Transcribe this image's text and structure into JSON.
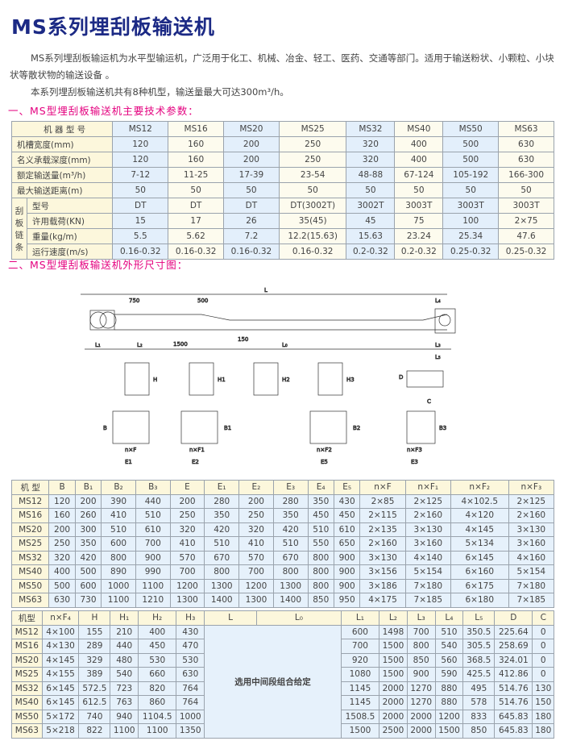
{
  "title": "MS系列埋刮板输送机",
  "intro": [
    "MS系列埋刮板输运机为水平型输运机，广泛用于化工、机械、冶金、轻工、医药、交通等部门。适用于输送粉状、小颗粒、小块状等散状物的输送设备 。",
    "本系列埋刮板输送机共有8种机型，输送量最大可达300m³/h。"
  ],
  "section1": "一、MS型埋刮板输送机主要技术参数：",
  "section2": "二、MS型埋刮板输送机外形尺寸图：",
  "colors": {
    "title": "#1c2a85",
    "section": "#e4007f",
    "header_bg": "#fcf7dc",
    "cell_bg": "#e6f1fb"
  },
  "spec_table": {
    "header": "机 器 型 号",
    "models": [
      "MS12",
      "MS16",
      "MS20",
      "MS25",
      "MS32",
      "MS40",
      "MS50",
      "MS63"
    ],
    "rows": [
      {
        "label": "机槽宽度(mm)",
        "values": [
          "120",
          "160",
          "200",
          "250",
          "320",
          "400",
          "500",
          "630"
        ]
      },
      {
        "label": "名义承载深度(mm)",
        "values": [
          "120",
          "160",
          "200",
          "250",
          "320",
          "400",
          "500",
          "630"
        ]
      },
      {
        "label": "额定输送量(m³/h)",
        "values": [
          "7-12",
          "11-25",
          "17-39",
          "23-54",
          "48-88",
          "67-124",
          "105-192",
          "166-300"
        ]
      },
      {
        "label": "最大输送距离(m)",
        "values": [
          "50",
          "50",
          "50",
          "50",
          "50",
          "50",
          "50",
          "50"
        ]
      }
    ],
    "chain_group": "刮板链条",
    "chain_rows": [
      {
        "label": "型号",
        "values": [
          "DT",
          "DT",
          "DT",
          "DT(3002T)",
          "3002T",
          "3003T",
          "3003T",
          "3003T"
        ]
      },
      {
        "label": "许用载荷(KN)",
        "values": [
          "15",
          "17",
          "26",
          "35(45)",
          "45",
          "75",
          "100",
          "2×75"
        ]
      },
      {
        "label": "重量(kg/m)",
        "values": [
          "5.5",
          "5.62",
          "7.2",
          "12.2(15.63)",
          "15.63",
          "23.24",
          "25.34",
          "47.6"
        ]
      },
      {
        "label": "运行速度(m/s)",
        "values": [
          "0.16-0.32",
          "0.16-0.32",
          "0.16-0.32",
          "0.16-0.32",
          "0.2-0.32",
          "0.2-0.32",
          "0.25-0.32",
          "0.25-0.32"
        ]
      }
    ]
  },
  "drawing_labels": {
    "L": "L",
    "d750": "750",
    "d500": "500",
    "d150": "150",
    "d1500": "1500",
    "L0": "L₀",
    "L1": "L₁",
    "L2": "L₂",
    "L3": "L₃",
    "L4": "L₄",
    "L5": "L₅",
    "H": "H",
    "H1": "H1",
    "H2": "H2",
    "H3": "H3",
    "B": "B",
    "B1": "B1",
    "B2": "B2",
    "B3": "B3",
    "E1": "E1",
    "E2": "E2",
    "E3": "E3",
    "E5": "E5",
    "D": "D",
    "C": "C",
    "nF": "n×F",
    "nF1": "n×F1",
    "nF2": "n×F2",
    "nF3": "n×F3"
  },
  "dim_table1": {
    "headers": [
      "机 型",
      "B",
      "B₁",
      "B₂",
      "B₃",
      "E",
      "E₁",
      "E₂",
      "E₃",
      "E₄",
      "E₅",
      "n×F",
      "n×F₁",
      "n×F₂",
      "n×F₃"
    ],
    "rows": [
      [
        "MS12",
        "120",
        "200",
        "390",
        "440",
        "200",
        "280",
        "200",
        "280",
        "350",
        "430",
        "2×85",
        "2×125",
        "4×102.5",
        "2×125"
      ],
      [
        "MS16",
        "160",
        "260",
        "410",
        "510",
        "250",
        "350",
        "250",
        "350",
        "450",
        "450",
        "2×115",
        "2×160",
        "4×120",
        "2×160"
      ],
      [
        "MS20",
        "200",
        "300",
        "510",
        "610",
        "320",
        "420",
        "320",
        "420",
        "510",
        "610",
        "2×135",
        "3×130",
        "4×145",
        "3×130"
      ],
      [
        "MS25",
        "250",
        "350",
        "600",
        "700",
        "410",
        "510",
        "410",
        "510",
        "550",
        "650",
        "2×160",
        "3×160",
        "5×134",
        "3×160"
      ],
      [
        "MS32",
        "320",
        "420",
        "800",
        "900",
        "570",
        "670",
        "570",
        "670",
        "800",
        "900",
        "3×130",
        "4×140",
        "6×145",
        "4×160"
      ],
      [
        "MS40",
        "400",
        "500",
        "890",
        "990",
        "700",
        "800",
        "700",
        "800",
        "800",
        "900",
        "3×156",
        "5×154",
        "6×160",
        "5×154"
      ],
      [
        "MS50",
        "500",
        "600",
        "1000",
        "1100",
        "1200",
        "1300",
        "1200",
        "1300",
        "800",
        "900",
        "3×186",
        "7×180",
        "6×175",
        "7×180"
      ],
      [
        "MS63",
        "630",
        "730",
        "1100",
        "1210",
        "1300",
        "1400",
        "1300",
        "1400",
        "850",
        "950",
        "4×175",
        "7×185",
        "6×180",
        "7×185"
      ]
    ]
  },
  "dim_table2": {
    "headers": [
      "机型",
      "n×F₄",
      "H",
      "H₁",
      "H₂",
      "H₃",
      "L",
      "L₀",
      "L₁",
      "L₂",
      "L₃",
      "L₄",
      "L₅",
      "D",
      "C"
    ],
    "merged_note": "选用中间段组合给定",
    "rows": [
      [
        "MS12",
        "4×100",
        "155",
        "210",
        "400",
        "430",
        "600",
        "1498",
        "700",
        "510",
        "350.5",
        "225.64",
        "0"
      ],
      [
        "MS16",
        "4×130",
        "289",
        "440",
        "450",
        "470",
        "700",
        "1500",
        "800",
        "540",
        "305.5",
        "258.69",
        "0"
      ],
      [
        "MS20",
        "4×145",
        "329",
        "480",
        "530",
        "530",
        "920",
        "1500",
        "850",
        "560",
        "368.5",
        "324.01",
        "0"
      ],
      [
        "MS25",
        "4×155",
        "389",
        "540",
        "660",
        "630",
        "1080",
        "1500",
        "900",
        "590",
        "425.5",
        "412.86",
        "0"
      ],
      [
        "MS32",
        "6×145",
        "572.5",
        "723",
        "820",
        "764",
        "1145",
        "2000",
        "1270",
        "880",
        "495",
        "514.76",
        "130"
      ],
      [
        "MS40",
        "6×145",
        "612.5",
        "763",
        "860",
        "764",
        "1145",
        "2000",
        "1270",
        "880",
        "578",
        "514.76",
        "150"
      ],
      [
        "MS50",
        "5×172",
        "740",
        "940",
        "1104.5",
        "1000",
        "1508.5",
        "2000",
        "2000",
        "1200",
        "833",
        "645.83",
        "180"
      ],
      [
        "MS63",
        "5×218",
        "822",
        "1100",
        "1100",
        "1350",
        "1500",
        "2500",
        "2000",
        "1500",
        "850",
        "645.83",
        "180"
      ]
    ]
  }
}
